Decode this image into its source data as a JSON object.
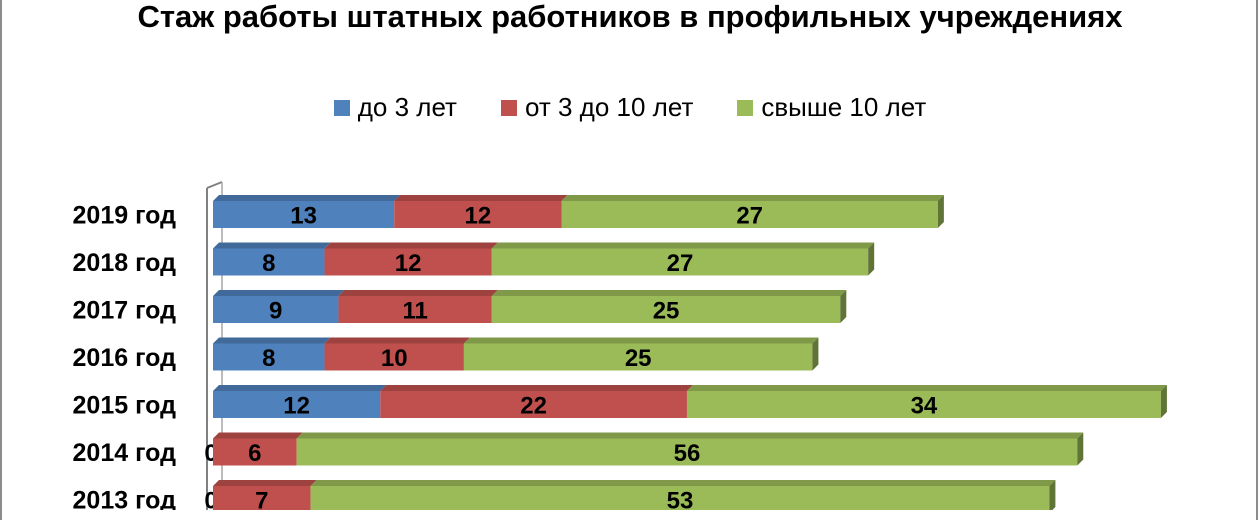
{
  "chart_data": {
    "type": "bar",
    "orientation": "horizontal",
    "stacked": true,
    "title": "Стаж работы штатных работников в профильных учреждениях",
    "legend_position": "top",
    "categories": [
      "2019 год",
      "2018 год",
      "2017 год",
      "2016 год",
      "2015 год",
      "2014 год",
      "2013 год"
    ],
    "series": [
      {
        "name": "до  3 лет",
        "color": "#4f81bd",
        "values": [
          13,
          8,
          9,
          8,
          12,
          0,
          0
        ]
      },
      {
        "name": "от 3 до 10 лет",
        "color": "#c0504d",
        "values": [
          12,
          12,
          11,
          10,
          22,
          6,
          7
        ]
      },
      {
        "name": "свыше 10 лет",
        "color": "#9bbb59",
        "values": [
          27,
          27,
          25,
          25,
          34,
          56,
          53
        ]
      }
    ],
    "data_labels": true,
    "grid": false
  }
}
